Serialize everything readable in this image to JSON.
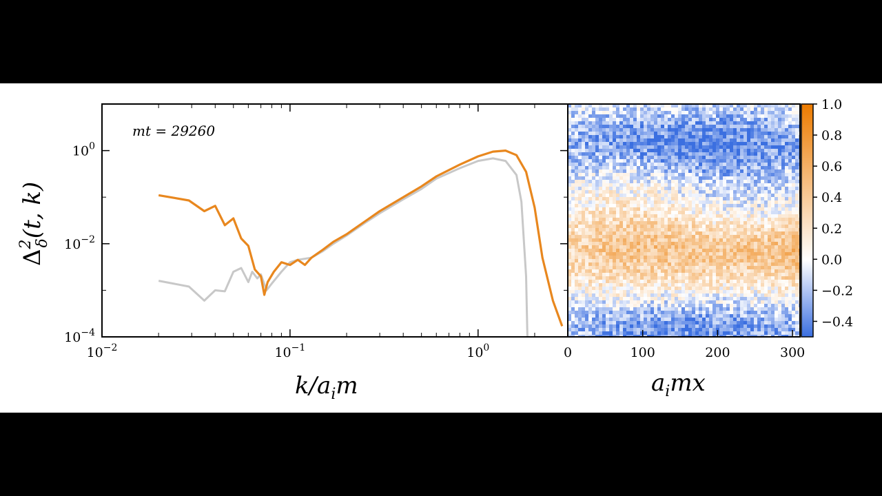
{
  "chart_data": [
    {
      "type": "line",
      "annotation": "mt = 29260",
      "xlabel": "k/a_i m",
      "ylabel": "Δ²_δ(t, k)",
      "xscale": "log",
      "yscale": "log",
      "xlim": [
        0.01,
        3.0
      ],
      "ylim": [
        0.0001,
        10
      ],
      "xtick_labels": [
        {
          "value": 0.01,
          "base": "10",
          "exp": "−2"
        },
        {
          "value": 0.1,
          "base": "10",
          "exp": "−1"
        },
        {
          "value": 1,
          "base": "10",
          "exp": "0"
        }
      ],
      "ytick_labels": [
        {
          "value": 0.0001,
          "base": "10",
          "exp": "−4"
        },
        {
          "value": 0.01,
          "base": "10",
          "exp": "−2"
        },
        {
          "value": 1,
          "base": "10",
          "exp": "0"
        }
      ],
      "grid": false,
      "series": [
        {
          "color": "#e8871e",
          "x": [
            0.02,
            0.029,
            0.035,
            0.04,
            0.045,
            0.05,
            0.055,
            0.06,
            0.065,
            0.07,
            0.073,
            0.076,
            0.082,
            0.09,
            0.1,
            0.11,
            0.12,
            0.13,
            0.15,
            0.17,
            0.2,
            0.25,
            0.3,
            0.4,
            0.5,
            0.6,
            0.8,
            1.0,
            1.2,
            1.4,
            1.6,
            1.8,
            2.0,
            2.2,
            2.5,
            2.8
          ],
          "y": [
            0.11,
            0.085,
            0.05,
            0.065,
            0.025,
            0.035,
            0.013,
            0.009,
            0.0028,
            0.002,
            0.0008,
            0.0015,
            0.0025,
            0.004,
            0.0035,
            0.0045,
            0.0035,
            0.005,
            0.0075,
            0.011,
            0.016,
            0.03,
            0.05,
            0.1,
            0.17,
            0.28,
            0.5,
            0.75,
            0.95,
            1.0,
            0.8,
            0.35,
            0.06,
            0.005,
            0.0006,
            0.00017
          ]
        },
        {
          "color": "#c8c8c8",
          "x": [
            0.02,
            0.029,
            0.035,
            0.04,
            0.045,
            0.05,
            0.055,
            0.06,
            0.063,
            0.067,
            0.07,
            0.075,
            0.08,
            0.09,
            0.1,
            0.11,
            0.13,
            0.15,
            0.17,
            0.2,
            0.25,
            0.3,
            0.4,
            0.5,
            0.6,
            0.8,
            1.0,
            1.2,
            1.4,
            1.6,
            1.7,
            1.8,
            1.83
          ],
          "y": [
            0.0016,
            0.0012,
            0.0006,
            0.001,
            0.00095,
            0.0025,
            0.003,
            0.0015,
            0.0025,
            0.0018,
            0.0022,
            0.001,
            0.0014,
            0.0025,
            0.004,
            0.0045,
            0.005,
            0.007,
            0.01,
            0.015,
            0.028,
            0.045,
            0.09,
            0.15,
            0.25,
            0.42,
            0.6,
            0.68,
            0.6,
            0.3,
            0.08,
            0.002,
            0.0001
          ]
        }
      ]
    },
    {
      "type": "heatmap",
      "xlabel": "a_i mx",
      "xlim": [
        0,
        310
      ],
      "xticks": [
        0,
        100,
        200,
        300
      ],
      "colorbar": {
        "range": [
          -0.5,
          1.0
        ],
        "ticks": [
          "1.0",
          "0.8",
          "0.6",
          "0.4",
          "0.2",
          "0.0",
          "−0.2",
          "−0.4"
        ],
        "tick_values": [
          1.0,
          0.8,
          0.6,
          0.4,
          0.2,
          0.0,
          -0.2,
          -0.4
        ],
        "colors": [
          "#3b6fe0",
          "#ffffff",
          "#ec7b00"
        ]
      }
    }
  ]
}
